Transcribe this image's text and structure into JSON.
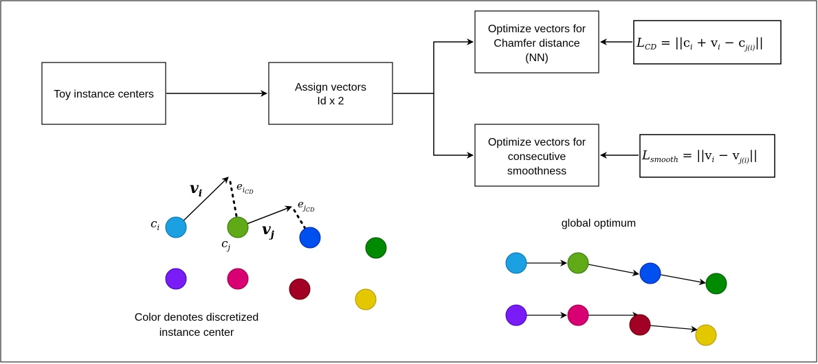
{
  "boxes": {
    "toy": "Toy instance centers",
    "assign_line1": "Assign vectors",
    "assign_line2": "Id x 2",
    "chamfer_line1": "Optimize vectors for",
    "chamfer_line2": "Chamfer distance",
    "chamfer_line3": "(NN)",
    "smooth_line1": "Optimize vectors for",
    "smooth_line2": "consecutive",
    "smooth_line3": "smoothness"
  },
  "formulas": {
    "cd_lhs": "L",
    "cd_sub": "CD",
    "cd_rhs_1": " = ||c",
    "cd_rhs_i1": "i",
    "cd_rhs_2": " + v",
    "cd_rhs_i2": "i",
    "cd_rhs_3": " − c",
    "cd_rhs_j": "j(i)",
    "cd_rhs_4": "||",
    "sm_lhs": "L",
    "sm_sub": "smooth",
    "sm_rhs_1": " = ||v",
    "sm_rhs_i": "i",
    "sm_rhs_2": " − v",
    "sm_rhs_j": "j(i)",
    "sm_rhs_3": "||"
  },
  "math_labels": {
    "v": "v",
    "v_i_sub": "i",
    "v_j_sub": "j",
    "c": "c",
    "c_i_sub": "i",
    "c_j_sub": "j",
    "e": "e",
    "e_i_sub": "i",
    "e_i_subsub": "CD",
    "e_j_sub": "j",
    "e_j_subsub": "CD"
  },
  "captions": {
    "color_line1": "Color denotes discretized",
    "color_line2": "instance center",
    "global": "global optimum"
  },
  "colors": {
    "cyan": "#1ba1e2",
    "green": "#60a917",
    "blue": "#0050ef",
    "darkgreen": "#008a00",
    "violet": "#7a1cf6",
    "magenta": "#d80073",
    "crimson": "#a20025",
    "yellow": "#e3c800"
  }
}
